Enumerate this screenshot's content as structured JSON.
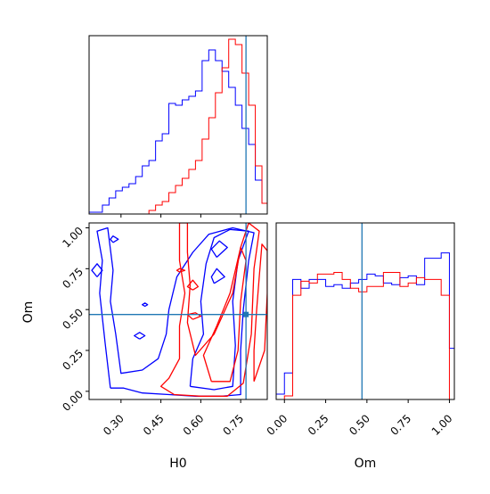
{
  "chart_data": [
    {
      "type": "histogram",
      "panel": "H0 marginal",
      "xlim": [
        0.18,
        0.85
      ],
      "ylim": [
        0,
        1
      ],
      "bin_edges": [
        0.18,
        0.205,
        0.23,
        0.255,
        0.28,
        0.305,
        0.33,
        0.355,
        0.38,
        0.405,
        0.43,
        0.455,
        0.48,
        0.505,
        0.53,
        0.555,
        0.58,
        0.605,
        0.63,
        0.655,
        0.68,
        0.705,
        0.73,
        0.755,
        0.78,
        0.805,
        0.83,
        0.85
      ],
      "series": [
        {
          "color": "#0000ff",
          "values": [
            0.01,
            0.01,
            0.05,
            0.09,
            0.13,
            0.15,
            0.17,
            0.21,
            0.27,
            0.3,
            0.41,
            0.45,
            0.62,
            0.61,
            0.64,
            0.66,
            0.69,
            0.86,
            0.92,
            0.86,
            0.8,
            0.71,
            0.61,
            0.48,
            0.39,
            0.19,
            0.06
          ]
        },
        {
          "color": "#ff0000",
          "values": [
            0,
            0,
            0,
            0,
            0,
            0,
            0,
            0,
            0,
            0.02,
            0.05,
            0.07,
            0.12,
            0.16,
            0.2,
            0.25,
            0.3,
            0.42,
            0.54,
            0.68,
            0.82,
            0.98,
            0.95,
            0.79,
            0.61,
            0.27,
            0.06
          ]
        }
      ],
      "truth_x": 0.77
    },
    {
      "type": "contour",
      "panel": "H0 vs Om",
      "xlabel": "H0",
      "ylabel": "Om",
      "xlim": [
        0.18,
        0.85
      ],
      "ylim": [
        -0.05,
        1.03
      ],
      "xticks": [
        "0.30",
        "0.45",
        "0.60",
        "0.75"
      ],
      "yticks": [
        "0.00",
        "0.25",
        "0.50",
        "0.75",
        "1.00"
      ],
      "series": [
        {
          "color": "#0000ff",
          "contours": [
            [
              [
                0.26,
                0.02
              ],
              [
                0.31,
                0.02
              ],
              [
                0.38,
                -0.01
              ],
              [
                0.48,
                -0.02
              ],
              [
                0.58,
                -0.03
              ],
              [
                0.68,
                -0.03
              ],
              [
                0.75,
                -0.02
              ],
              [
                0.75,
                0.25
              ],
              [
                0.76,
                0.5
              ],
              [
                0.78,
                0.8
              ],
              [
                0.8,
                0.97
              ],
              [
                0.72,
                1.0
              ],
              [
                0.63,
                0.96
              ],
              [
                0.57,
                0.85
              ],
              [
                0.51,
                0.7
              ],
              [
                0.48,
                0.5
              ],
              [
                0.47,
                0.35
              ],
              [
                0.44,
                0.2
              ],
              [
                0.38,
                0.13
              ],
              [
                0.3,
                0.11
              ],
              [
                0.28,
                0.35
              ],
              [
                0.26,
                0.55
              ],
              [
                0.27,
                0.74
              ],
              [
                0.25,
                1.0
              ],
              [
                0.21,
                0.98
              ],
              [
                0.23,
                0.8
              ],
              [
                0.22,
                0.6
              ],
              [
                0.24,
                0.3
              ],
              [
                0.26,
                0.02
              ]
            ],
            [
              [
                0.56,
                0.03
              ],
              [
                0.65,
                0.01
              ],
              [
                0.72,
                0.03
              ],
              [
                0.73,
                0.28
              ],
              [
                0.72,
                0.55
              ],
              [
                0.74,
                0.8
              ],
              [
                0.78,
                0.98
              ],
              [
                0.71,
                0.99
              ],
              [
                0.65,
                0.94
              ],
              [
                0.62,
                0.78
              ],
              [
                0.6,
                0.55
              ],
              [
                0.61,
                0.35
              ],
              [
                0.57,
                0.2
              ],
              [
                0.56,
                0.03
              ]
            ],
            [
              [
                0.66,
                0.82
              ],
              [
                0.7,
                0.88
              ],
              [
                0.67,
                0.92
              ],
              [
                0.64,
                0.87
              ],
              [
                0.66,
                0.82
              ]
            ],
            [
              [
                0.65,
                0.66
              ],
              [
                0.69,
                0.7
              ],
              [
                0.66,
                0.75
              ],
              [
                0.64,
                0.7
              ],
              [
                0.65,
                0.66
              ]
            ],
            [
              [
                0.21,
                0.7
              ],
              [
                0.23,
                0.74
              ],
              [
                0.21,
                0.78
              ],
              [
                0.19,
                0.74
              ],
              [
                0.21,
                0.7
              ]
            ],
            [
              [
                0.27,
                0.91
              ],
              [
                0.29,
                0.93
              ],
              [
                0.27,
                0.95
              ],
              [
                0.26,
                0.93
              ],
              [
                0.27,
                0.91
              ]
            ],
            [
              [
                0.37,
                0.32
              ],
              [
                0.39,
                0.34
              ],
              [
                0.37,
                0.36
              ],
              [
                0.35,
                0.34
              ],
              [
                0.37,
                0.32
              ]
            ],
            [
              [
                0.39,
                0.52
              ],
              [
                0.4,
                0.53
              ],
              [
                0.39,
                0.54
              ],
              [
                0.38,
                0.53
              ],
              [
                0.39,
                0.52
              ]
            ]
          ]
        },
        {
          "color": "#ff0000",
          "contours": [
            [
              [
                0.5,
                -0.02
              ],
              [
                0.6,
                -0.03
              ],
              [
                0.7,
                -0.03
              ],
              [
                0.76,
                0.05
              ],
              [
                0.79,
                0.35
              ],
              [
                0.8,
                0.75
              ],
              [
                0.82,
                0.98
              ],
              [
                0.78,
                1.03
              ],
              [
                0.75,
                0.88
              ],
              [
                0.72,
                0.6
              ],
              [
                0.65,
                0.35
              ],
              [
                0.58,
                0.22
              ],
              [
                0.55,
                0.42
              ],
              [
                0.56,
                0.65
              ],
              [
                0.55,
                0.85
              ],
              [
                0.55,
                1.03
              ],
              [
                0.52,
                1.03
              ],
              [
                0.52,
                0.8
              ],
              [
                0.54,
                0.6
              ],
              [
                0.52,
                0.4
              ],
              [
                0.52,
                0.2
              ],
              [
                0.48,
                0.08
              ],
              [
                0.45,
                0.03
              ],
              [
                0.5,
                -0.02
              ]
            ],
            [
              [
                0.64,
                0.06
              ],
              [
                0.71,
                0.06
              ],
              [
                0.74,
                0.25
              ],
              [
                0.75,
                0.55
              ],
              [
                0.77,
                0.8
              ],
              [
                0.75,
                0.88
              ],
              [
                0.71,
                0.6
              ],
              [
                0.66,
                0.4
              ],
              [
                0.61,
                0.22
              ],
              [
                0.64,
                0.06
              ]
            ],
            [
              [
                0.8,
                0.06
              ],
              [
                0.84,
                0.25
              ],
              [
                0.85,
                0.6
              ],
              [
                0.85,
                0.86
              ],
              [
                0.83,
                0.9
              ],
              [
                0.82,
                0.7
              ],
              [
                0.81,
                0.5
              ],
              [
                0.8,
                0.25
              ],
              [
                0.8,
                0.06
              ]
            ],
            [
              [
                0.57,
                0.62
              ],
              [
                0.59,
                0.64
              ],
              [
                0.57,
                0.68
              ],
              [
                0.55,
                0.64
              ],
              [
                0.57,
                0.62
              ]
            ],
            [
              [
                0.57,
                0.44
              ],
              [
                0.6,
                0.46
              ],
              [
                0.58,
                0.48
              ],
              [
                0.55,
                0.47
              ],
              [
                0.57,
                0.44
              ]
            ],
            [
              [
                0.52,
                0.73
              ],
              [
                0.54,
                0.74
              ],
              [
                0.52,
                0.75
              ],
              [
                0.51,
                0.74
              ],
              [
                0.52,
                0.73
              ]
            ]
          ]
        }
      ],
      "truth_point": [
        0.77,
        0.47
      ]
    },
    {
      "type": "histogram",
      "panel": "Om marginal",
      "xlabel": "Om",
      "xlim": [
        -0.05,
        1.03
      ],
      "ylim": [
        0,
        1
      ],
      "xticks": [
        "0.00",
        "0.25",
        "0.50",
        "0.75",
        "1.00"
      ],
      "bin_edges": [
        -0.05,
        0,
        0.05,
        0.1,
        0.15,
        0.2,
        0.25,
        0.3,
        0.35,
        0.4,
        0.45,
        0.5,
        0.55,
        0.6,
        0.65,
        0.7,
        0.75,
        0.8,
        0.85,
        0.9,
        0.95,
        1.0,
        1.03
      ],
      "series": [
        {
          "color": "#0000ff",
          "values": [
            0.03,
            0.15,
            0.68,
            0.63,
            0.68,
            0.68,
            0.64,
            0.65,
            0.63,
            0.66,
            0.68,
            0.71,
            0.7,
            0.66,
            0.65,
            0.69,
            0.7,
            0.65,
            0.8,
            0.8,
            0.83,
            0.29
          ]
        },
        {
          "color": "#ff0000",
          "values": [
            0,
            0.02,
            0.59,
            0.67,
            0.66,
            0.71,
            0.71,
            0.72,
            0.68,
            0.63,
            0.61,
            0.64,
            0.64,
            0.72,
            0.72,
            0.64,
            0.66,
            0.69,
            0.68,
            0.68,
            0.59,
            0
          ]
        }
      ],
      "truth_x": 0.47
    }
  ]
}
